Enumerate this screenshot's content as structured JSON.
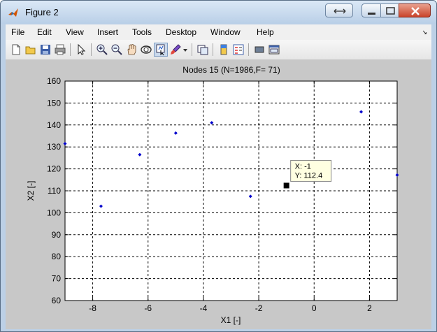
{
  "window": {
    "title": "Figure 2",
    "controls": [
      "restore",
      "minimize",
      "maximize",
      "close"
    ]
  },
  "menu": {
    "items": [
      "File",
      "Edit",
      "View",
      "Insert",
      "Tools",
      "Desktop",
      "Window",
      "Help"
    ],
    "overflow_glyph": "↘"
  },
  "toolbar": {
    "icons": [
      "new-figure-icon",
      "open-file-icon",
      "save-icon",
      "print-icon",
      "pointer-icon",
      "zoom-in-icon",
      "zoom-out-icon",
      "pan-icon",
      "rotate-3d-icon",
      "data-cursor-icon",
      "brush-icon",
      "dropdown-arrow-icon",
      "link-plot-icon",
      "colorbar-icon",
      "legend-icon",
      "hide-plot-tools-icon",
      "show-plot-tools-icon"
    ]
  },
  "chart_data": {
    "type": "scatter",
    "title": "Nodes 15 (N=1986,F= 71)",
    "xlabel": "X1 [-]",
    "ylabel": "X2 [-]",
    "xlim": [
      -9,
      3
    ],
    "ylim": [
      60,
      160
    ],
    "xticks": [
      -8,
      -6,
      -4,
      -2,
      0,
      2
    ],
    "yticks": [
      60,
      70,
      80,
      90,
      100,
      110,
      120,
      130,
      140,
      150,
      160
    ],
    "grid": true,
    "marker_color": "#0000cc",
    "points": [
      {
        "x": -9.0,
        "y": 131.5
      },
      {
        "x": -7.7,
        "y": 103.0
      },
      {
        "x": -6.3,
        "y": 126.5
      },
      {
        "x": -5.0,
        "y": 136.3
      },
      {
        "x": -3.7,
        "y": 141.0
      },
      {
        "x": -2.3,
        "y": 107.5
      },
      {
        "x": 1.7,
        "y": 146.0
      },
      {
        "x": 3.0,
        "y": 117.2
      }
    ],
    "datatip": {
      "x": -1,
      "y": 112.4,
      "x_label": "X: -1",
      "y_label": "Y: 112.4"
    }
  }
}
